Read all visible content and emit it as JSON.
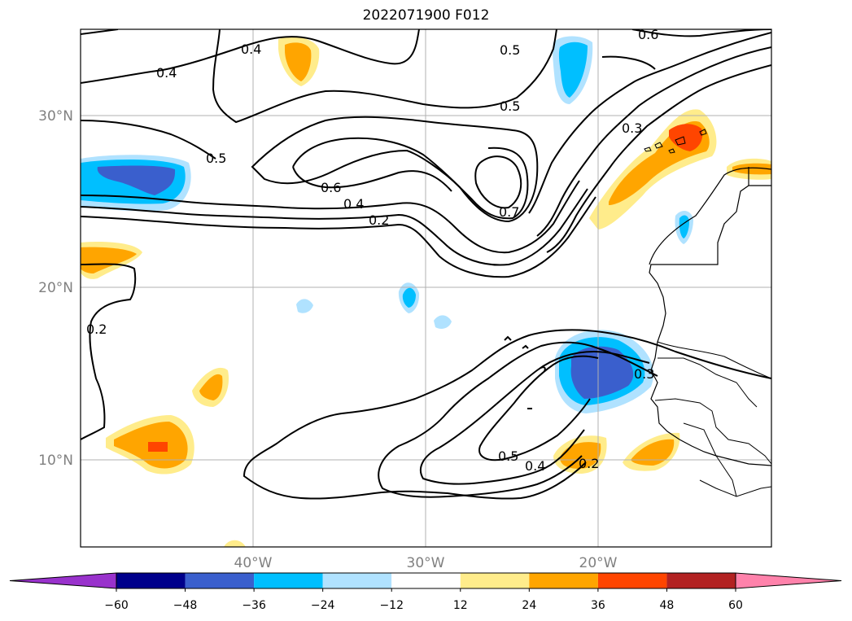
{
  "title": "2022071900 F012",
  "lat_labels": [
    "30°N",
    "20°N",
    "10°N"
  ],
  "lon_labels": [
    "40°W",
    "30°W",
    "20°W"
  ],
  "colorbar": {
    "ticks": [
      "−60",
      "−48",
      "−36",
      "−24",
      "−12",
      "12",
      "24",
      "36",
      "48",
      "60"
    ],
    "colors": [
      "#9932cc",
      "#00008b",
      "#3a5fcd",
      "#00bfff",
      "#b0e2ff",
      "#ffffff",
      "#ffec8b",
      "#ffa500",
      "#ff4500",
      "#b22222",
      "#ff82ab"
    ]
  },
  "contour_labels": [
    "0.4",
    "0.4",
    "0.5",
    "0.5",
    "0.5",
    "0.6",
    "0.3",
    "0.6",
    "0.4",
    "0.2",
    "0.7",
    "0.2",
    "0.5",
    "0.4",
    "0.2",
    "0.3"
  ]
}
